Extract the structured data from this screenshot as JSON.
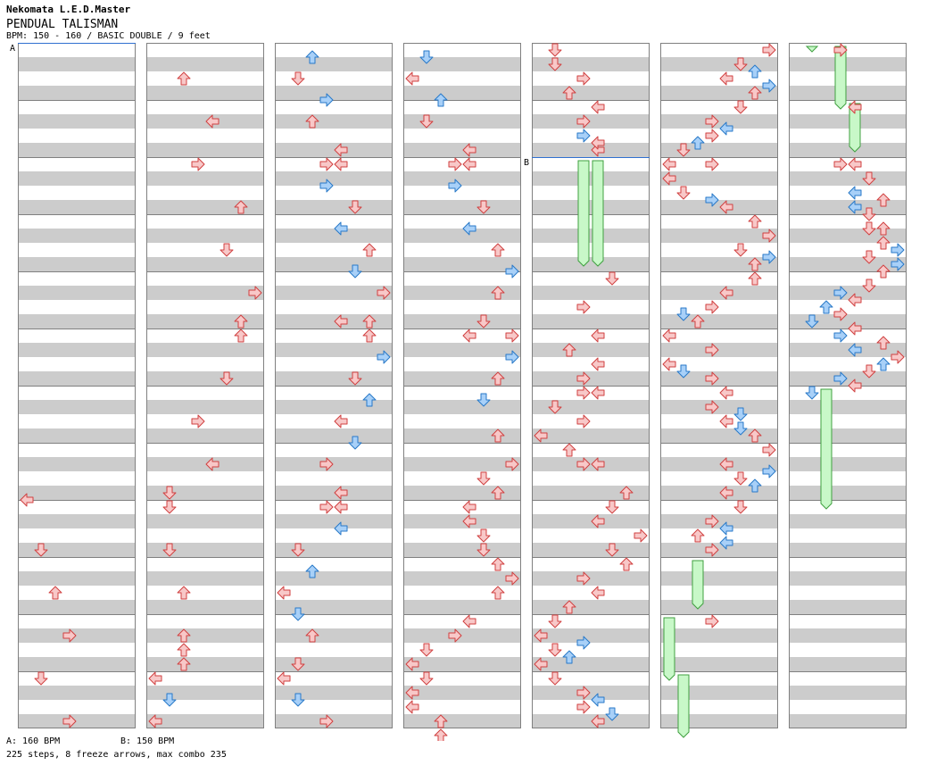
{
  "header": {
    "artist": "Nekomata L.E.D.Master",
    "title": "PENDUAL TALISMAN",
    "info": "BPM: 150 - 160 / BASIC DOUBLE / 9 feet"
  },
  "bpm_markers": [
    {
      "label": "A",
      "bpm_text": "A: 160 BPM",
      "column": 0,
      "row": 0
    },
    {
      "label": "B",
      "bpm_text": "B: 150 BPM",
      "column": 4,
      "row": 128
    }
  ],
  "footer": {
    "stats": "225 steps, 8 freeze arrows, max combo 235"
  },
  "chart": {
    "columns": 7,
    "measures_per_column": 12,
    "lanes": [
      "left",
      "down",
      "up",
      "right",
      "left",
      "down",
      "up",
      "right"
    ],
    "colors": {
      "quarter_fill": "#f8c8c8",
      "quarter_stroke": "#d04040",
      "eighth_fill": "#a8d0f8",
      "eighth_stroke": "#2878c8",
      "freeze_fill": "#c8f8c8",
      "freeze_stroke": "#40a040",
      "band": "#cccccc",
      "border": "#808080",
      "marker": "#3070d0"
    },
    "freezes": [
      {
        "c": 4,
        "lane": 3,
        "r0": 128,
        "r1": 248
      },
      {
        "c": 4,
        "lane": 4,
        "r0": 128,
        "r1": 248
      },
      {
        "c": 5,
        "lane": 2,
        "r0": 576,
        "r1": 632
      },
      {
        "c": 5,
        "lane": 0,
        "r0": 640,
        "r1": 712
      },
      {
        "c": 5,
        "lane": 1,
        "r0": 704,
        "r1": 776
      },
      {
        "c": 6,
        "lane": 1,
        "r0": 0,
        "r1": 8
      },
      {
        "c": 6,
        "lane": 3,
        "r0": 0,
        "r1": 72
      },
      {
        "c": 6,
        "lane": 4,
        "r0": 64,
        "r1": 120
      },
      {
        "c": 6,
        "lane": 2,
        "r0": 384,
        "r1": 520
      }
    ],
    "notes": [
      [
        0,
        0,
        504,
        "q"
      ],
      [
        0,
        1,
        560,
        "q"
      ],
      [
        0,
        2,
        608,
        "q"
      ],
      [
        0,
        3,
        656,
        "q"
      ],
      [
        0,
        1,
        704,
        "q"
      ],
      [
        0,
        3,
        752,
        "q"
      ],
      [
        1,
        2,
        32,
        "q"
      ],
      [
        1,
        4,
        80,
        "q"
      ],
      [
        1,
        3,
        128,
        "q"
      ],
      [
        1,
        6,
        176,
        "q"
      ],
      [
        1,
        5,
        224,
        "q"
      ],
      [
        1,
        7,
        272,
        "q"
      ],
      [
        1,
        6,
        304,
        "q"
      ],
      [
        1,
        6,
        320,
        "q"
      ],
      [
        1,
        5,
        368,
        "q"
      ],
      [
        1,
        3,
        416,
        "q"
      ],
      [
        1,
        4,
        464,
        "q"
      ],
      [
        1,
        1,
        496,
        "q"
      ],
      [
        1,
        1,
        512,
        "q"
      ],
      [
        1,
        1,
        560,
        "q"
      ],
      [
        1,
        2,
        608,
        "q"
      ],
      [
        1,
        2,
        656,
        "q"
      ],
      [
        1,
        2,
        672,
        "q"
      ],
      [
        1,
        2,
        688,
        "q"
      ],
      [
        1,
        0,
        704,
        "q"
      ],
      [
        1,
        1,
        728,
        "e"
      ],
      [
        1,
        0,
        752,
        "q"
      ],
      [
        2,
        2,
        8,
        "e"
      ],
      [
        2,
        1,
        32,
        "q"
      ],
      [
        2,
        3,
        56,
        "e"
      ],
      [
        2,
        2,
        80,
        "q"
      ],
      [
        2,
        4,
        112,
        "q"
      ],
      [
        2,
        3,
        128,
        "q"
      ],
      [
        2,
        4,
        128,
        "q"
      ],
      [
        2,
        3,
        152,
        "e"
      ],
      [
        2,
        5,
        176,
        "q"
      ],
      [
        2,
        4,
        200,
        "e"
      ],
      [
        2,
        6,
        224,
        "q"
      ],
      [
        2,
        5,
        248,
        "e"
      ],
      [
        2,
        7,
        272,
        "q"
      ],
      [
        2,
        6,
        304,
        "q"
      ],
      [
        2,
        4,
        304,
        "q"
      ],
      [
        2,
        6,
        320,
        "q"
      ],
      [
        2,
        7,
        344,
        "e"
      ],
      [
        2,
        5,
        368,
        "q"
      ],
      [
        2,
        6,
        392,
        "e"
      ],
      [
        2,
        4,
        416,
        "q"
      ],
      [
        2,
        5,
        440,
        "e"
      ],
      [
        2,
        3,
        464,
        "q"
      ],
      [
        2,
        4,
        496,
        "q"
      ],
      [
        2,
        3,
        512,
        "q"
      ],
      [
        2,
        4,
        512,
        "q"
      ],
      [
        2,
        4,
        536,
        "e"
      ],
      [
        2,
        1,
        560,
        "q"
      ],
      [
        2,
        2,
        584,
        "e"
      ],
      [
        2,
        0,
        608,
        "q"
      ],
      [
        2,
        1,
        632,
        "e"
      ],
      [
        2,
        2,
        656,
        "q"
      ],
      [
        2,
        1,
        688,
        "q"
      ],
      [
        2,
        0,
        704,
        "q"
      ],
      [
        2,
        1,
        728,
        "e"
      ],
      [
        2,
        3,
        752,
        "q"
      ],
      [
        3,
        1,
        8,
        "e"
      ],
      [
        3,
        0,
        32,
        "q"
      ],
      [
        3,
        2,
        56,
        "e"
      ],
      [
        3,
        1,
        80,
        "q"
      ],
      [
        3,
        4,
        112,
        "q"
      ],
      [
        3,
        3,
        128,
        "q"
      ],
      [
        3,
        4,
        128,
        "q"
      ],
      [
        3,
        3,
        152,
        "e"
      ],
      [
        3,
        5,
        176,
        "q"
      ],
      [
        3,
        4,
        200,
        "e"
      ],
      [
        3,
        6,
        224,
        "q"
      ],
      [
        3,
        7,
        248,
        "e"
      ],
      [
        3,
        6,
        272,
        "q"
      ],
      [
        3,
        5,
        304,
        "q"
      ],
      [
        3,
        4,
        320,
        "q"
      ],
      [
        3,
        7,
        320,
        "q"
      ],
      [
        3,
        7,
        344,
        "e"
      ],
      [
        3,
        6,
        368,
        "q"
      ],
      [
        3,
        5,
        392,
        "e"
      ],
      [
        3,
        6,
        432,
        "q"
      ],
      [
        3,
        7,
        464,
        "q"
      ],
      [
        3,
        5,
        480,
        "q"
      ],
      [
        3,
        6,
        496,
        "q"
      ],
      [
        3,
        4,
        512,
        "q"
      ],
      [
        3,
        4,
        528,
        "q"
      ],
      [
        3,
        5,
        544,
        "q"
      ],
      [
        3,
        5,
        560,
        "q"
      ],
      [
        3,
        6,
        576,
        "q"
      ],
      [
        3,
        7,
        592,
        "q"
      ],
      [
        3,
        6,
        608,
        "q"
      ],
      [
        3,
        4,
        640,
        "q"
      ],
      [
        3,
        3,
        656,
        "q"
      ],
      [
        3,
        1,
        672,
        "q"
      ],
      [
        3,
        0,
        688,
        "q"
      ],
      [
        3,
        1,
        704,
        "q"
      ],
      [
        3,
        0,
        720,
        "q"
      ],
      [
        3,
        0,
        736,
        "q"
      ],
      [
        3,
        2,
        752,
        "q"
      ],
      [
        3,
        2,
        768,
        "q"
      ],
      [
        4,
        1,
        0,
        "q"
      ],
      [
        4,
        1,
        16,
        "q"
      ],
      [
        4,
        3,
        32,
        "q"
      ],
      [
        4,
        2,
        48,
        "q"
      ],
      [
        4,
        4,
        64,
        "q"
      ],
      [
        4,
        3,
        80,
        "q"
      ],
      [
        4,
        4,
        112,
        "q"
      ],
      [
        4,
        3,
        96,
        "e"
      ],
      [
        4,
        4,
        104,
        "q"
      ],
      [
        4,
        5,
        256,
        "q"
      ],
      [
        4,
        3,
        288,
        "q"
      ],
      [
        4,
        4,
        320,
        "q"
      ],
      [
        4,
        2,
        336,
        "q"
      ],
      [
        4,
        4,
        352,
        "q"
      ],
      [
        4,
        3,
        368,
        "q"
      ],
      [
        4,
        3,
        384,
        "q"
      ],
      [
        4,
        4,
        384,
        "q"
      ],
      [
        4,
        1,
        400,
        "q"
      ],
      [
        4,
        3,
        416,
        "q"
      ],
      [
        4,
        0,
        432,
        "q"
      ],
      [
        4,
        2,
        448,
        "q"
      ],
      [
        4,
        3,
        464,
        "q"
      ],
      [
        4,
        4,
        464,
        "q"
      ],
      [
        4,
        6,
        496,
        "q"
      ],
      [
        4,
        5,
        512,
        "q"
      ],
      [
        4,
        4,
        528,
        "q"
      ],
      [
        4,
        7,
        544,
        "q"
      ],
      [
        4,
        5,
        560,
        "q"
      ],
      [
        4,
        6,
        576,
        "q"
      ],
      [
        4,
        3,
        592,
        "q"
      ],
      [
        4,
        4,
        608,
        "q"
      ],
      [
        4,
        2,
        624,
        "q"
      ],
      [
        4,
        1,
        640,
        "q"
      ],
      [
        4,
        0,
        656,
        "q"
      ],
      [
        4,
        3,
        664,
        "e"
      ],
      [
        4,
        1,
        672,
        "q"
      ],
      [
        4,
        2,
        680,
        "e"
      ],
      [
        4,
        0,
        688,
        "q"
      ],
      [
        4,
        1,
        704,
        "q"
      ],
      [
        4,
        3,
        720,
        "q"
      ],
      [
        4,
        3,
        736,
        "q"
      ],
      [
        4,
        4,
        728,
        "e"
      ],
      [
        4,
        5,
        744,
        "e"
      ],
      [
        4,
        4,
        752,
        "q"
      ],
      [
        5,
        7,
        0,
        "q"
      ],
      [
        5,
        5,
        16,
        "q"
      ],
      [
        5,
        6,
        24,
        "e"
      ],
      [
        5,
        4,
        32,
        "q"
      ],
      [
        5,
        7,
        40,
        "e"
      ],
      [
        5,
        6,
        48,
        "q"
      ],
      [
        5,
        5,
        64,
        "q"
      ],
      [
        5,
        3,
        80,
        "q"
      ],
      [
        5,
        4,
        88,
        "e"
      ],
      [
        5,
        3,
        96,
        "q"
      ],
      [
        5,
        2,
        104,
        "e"
      ],
      [
        5,
        1,
        112,
        "q"
      ],
      [
        5,
        0,
        128,
        "q"
      ],
      [
        5,
        3,
        128,
        "q"
      ],
      [
        5,
        0,
        144,
        "q"
      ],
      [
        5,
        1,
        160,
        "q"
      ],
      [
        5,
        3,
        168,
        "e"
      ],
      [
        5,
        4,
        176,
        "q"
      ],
      [
        5,
        6,
        192,
        "q"
      ],
      [
        5,
        7,
        208,
        "q"
      ],
      [
        5,
        5,
        224,
        "q"
      ],
      [
        5,
        7,
        232,
        "e"
      ],
      [
        5,
        6,
        240,
        "q"
      ],
      [
        5,
        6,
        256,
        "q"
      ],
      [
        5,
        4,
        272,
        "q"
      ],
      [
        5,
        1,
        296,
        "e"
      ],
      [
        5,
        2,
        304,
        "q"
      ],
      [
        5,
        3,
        288,
        "q"
      ],
      [
        5,
        0,
        320,
        "q"
      ],
      [
        5,
        3,
        336,
        "q"
      ],
      [
        5,
        0,
        352,
        "q"
      ],
      [
        5,
        1,
        360,
        "e"
      ],
      [
        5,
        3,
        368,
        "q"
      ],
      [
        5,
        4,
        384,
        "q"
      ],
      [
        5,
        3,
        400,
        "q"
      ],
      [
        5,
        4,
        416,
        "q"
      ],
      [
        5,
        5,
        408,
        "e"
      ],
      [
        5,
        5,
        424,
        "e"
      ],
      [
        5,
        6,
        432,
        "q"
      ],
      [
        5,
        7,
        448,
        "q"
      ],
      [
        5,
        4,
        464,
        "q"
      ],
      [
        5,
        7,
        472,
        "e"
      ],
      [
        5,
        5,
        480,
        "q"
      ],
      [
        5,
        6,
        488,
        "e"
      ],
      [
        5,
        4,
        496,
        "q"
      ],
      [
        5,
        5,
        512,
        "q"
      ],
      [
        5,
        3,
        528,
        "q"
      ],
      [
        5,
        4,
        536,
        "e"
      ],
      [
        5,
        2,
        544,
        "q"
      ],
      [
        5,
        4,
        552,
        "e"
      ],
      [
        5,
        3,
        560,
        "q"
      ],
      [
        5,
        3,
        640,
        "q"
      ]
    ],
    "notes_c6": [
      [
        6,
        3,
        0,
        "q"
      ],
      [
        6,
        4,
        64,
        "q"
      ],
      [
        6,
        3,
        128,
        "q"
      ],
      [
        6,
        4,
        128,
        "q"
      ],
      [
        6,
        5,
        144,
        "q"
      ],
      [
        6,
        4,
        160,
        "e"
      ],
      [
        6,
        6,
        168,
        "q"
      ],
      [
        6,
        4,
        176,
        "e"
      ],
      [
        6,
        5,
        184,
        "q"
      ],
      [
        6,
        5,
        200,
        "q"
      ],
      [
        6,
        6,
        200,
        "q"
      ],
      [
        6,
        6,
        216,
        "q"
      ],
      [
        6,
        7,
        224,
        "e"
      ],
      [
        6,
        5,
        232,
        "q"
      ],
      [
        6,
        7,
        240,
        "e"
      ],
      [
        6,
        6,
        248,
        "q"
      ],
      [
        6,
        5,
        264,
        "q"
      ],
      [
        6,
        3,
        272,
        "e"
      ],
      [
        6,
        4,
        280,
        "q"
      ],
      [
        6,
        2,
        288,
        "e"
      ],
      [
        6,
        3,
        296,
        "q"
      ],
      [
        6,
        1,
        304,
        "e"
      ],
      [
        6,
        4,
        312,
        "q"
      ],
      [
        6,
        3,
        320,
        "e"
      ],
      [
        6,
        6,
        328,
        "q"
      ],
      [
        6,
        4,
        336,
        "e"
      ],
      [
        6,
        7,
        344,
        "q"
      ],
      [
        6,
        6,
        352,
        "e"
      ],
      [
        6,
        5,
        360,
        "q"
      ],
      [
        6,
        3,
        368,
        "e"
      ],
      [
        6,
        4,
        376,
        "q"
      ],
      [
        6,
        1,
        384,
        "e"
      ]
    ]
  }
}
